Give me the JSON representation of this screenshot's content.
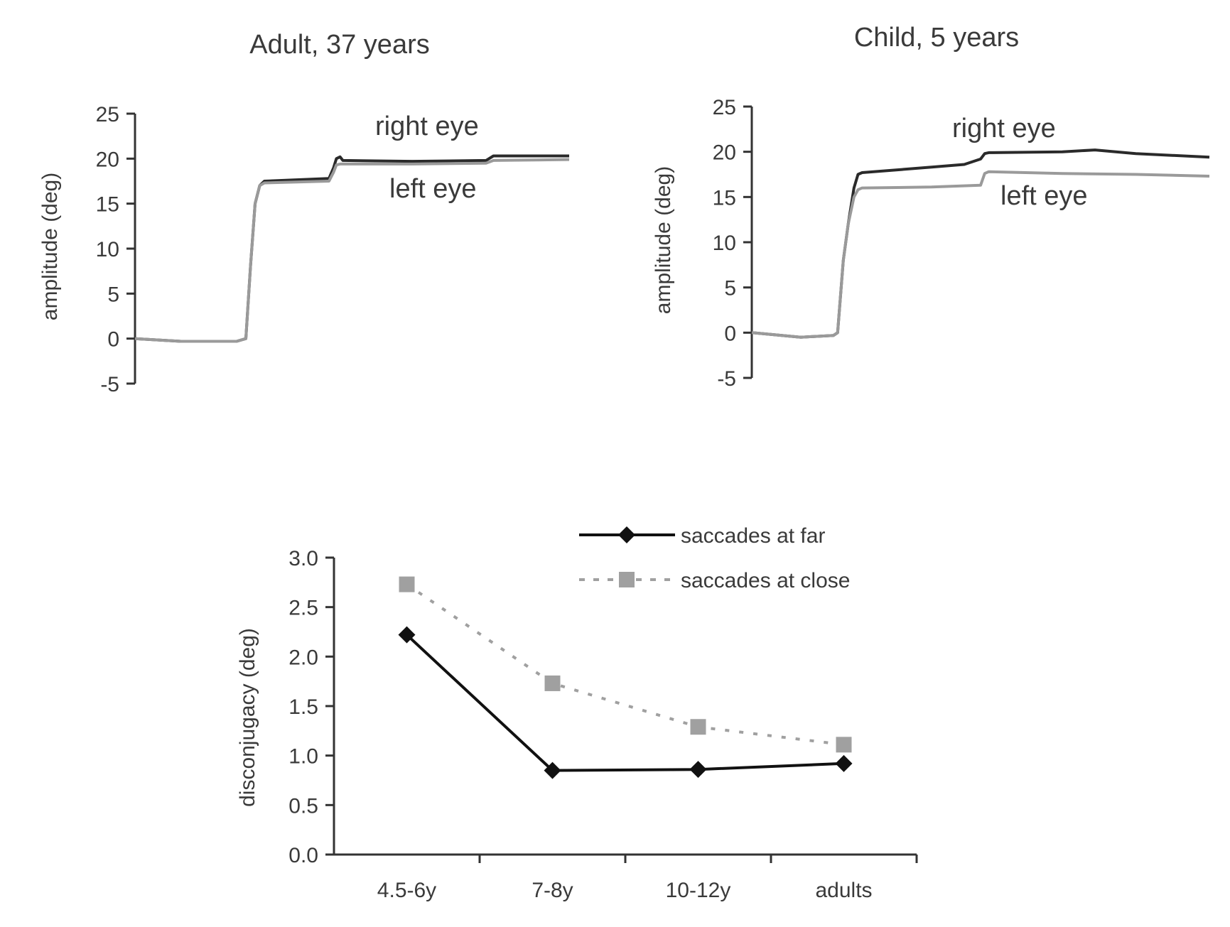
{
  "chart_data": [
    {
      "type": "line",
      "title": "Adult, 37 years",
      "ylabel": "amplitude (deg)",
      "xlabel": "",
      "ylim": [
        -5,
        25
      ],
      "yticks": [
        -5,
        0,
        5,
        10,
        15,
        20,
        25
      ],
      "annotations": [
        "right eye",
        "left eye"
      ],
      "series": [
        {
          "name": "right eye",
          "color": "#2a2a2a",
          "x": [
            0,
            50,
            110,
            120,
            125,
            130,
            135,
            140,
            210,
            215,
            218,
            222,
            225,
            300,
            380,
            388,
            392,
            470
          ],
          "y": [
            0,
            -0.3,
            -0.3,
            0,
            8,
            15,
            17,
            17.5,
            17.8,
            19,
            20,
            20.2,
            19.8,
            19.7,
            19.8,
            20.3,
            20.3,
            20.3
          ]
        },
        {
          "name": "left eye",
          "color": "#9a9a9a",
          "x": [
            0,
            50,
            110,
            120,
            125,
            130,
            135,
            140,
            210,
            215,
            218,
            222,
            225,
            300,
            380,
            388,
            470
          ],
          "y": [
            0,
            -0.3,
            -0.3,
            0,
            8,
            15,
            17,
            17.3,
            17.5,
            18.5,
            19.3,
            19.4,
            19.4,
            19.4,
            19.5,
            19.8,
            19.9
          ]
        }
      ]
    },
    {
      "type": "line",
      "title": "Child, 5 years",
      "ylabel": "amplitude (deg)",
      "xlabel": "",
      "ylim": [
        -5,
        25
      ],
      "yticks": [
        -5,
        0,
        5,
        10,
        15,
        20,
        25
      ],
      "annotations": [
        "right eye",
        "left eye"
      ],
      "series": [
        {
          "name": "right eye",
          "color": "#2a2a2a",
          "x": [
            0,
            60,
            100,
            105,
            112,
            118,
            125,
            130,
            135,
            220,
            260,
            280,
            285,
            290,
            380,
            420,
            470,
            560
          ],
          "y": [
            0,
            -0.5,
            -0.3,
            0,
            8,
            12,
            16,
            17.5,
            17.7,
            18.3,
            18.6,
            19.2,
            19.8,
            19.9,
            20,
            20.2,
            19.8,
            19.4
          ]
        },
        {
          "name": "left eye",
          "color": "#9a9a9a",
          "x": [
            0,
            60,
            100,
            105,
            112,
            118,
            125,
            130,
            135,
            220,
            280,
            285,
            290,
            380,
            470,
            560
          ],
          "y": [
            0,
            -0.5,
            -0.3,
            0,
            8,
            12,
            15,
            15.8,
            16,
            16.1,
            16.3,
            17.6,
            17.8,
            17.6,
            17.5,
            17.3
          ]
        }
      ]
    },
    {
      "type": "line",
      "title": "",
      "ylabel": "disconjugacy (deg)",
      "xlabel": "",
      "ylim": [
        0,
        3
      ],
      "yticks": [
        "0.0",
        "0.5",
        "1.0",
        "1.5",
        "2.0",
        "2.5",
        "3.0"
      ],
      "categories": [
        "4.5-6y",
        "7-8y",
        "10-12y",
        "adults"
      ],
      "legend_position": "top-right",
      "series": [
        {
          "name": "saccades at far",
          "marker": "diamond",
          "line": "solid",
          "color": "#111111",
          "values": [
            2.22,
            0.85,
            0.86,
            0.92
          ]
        },
        {
          "name": "saccades at close",
          "marker": "square",
          "line": "dotted",
          "color": "#a0a0a0",
          "values": [
            2.73,
            1.73,
            1.29,
            1.11
          ]
        }
      ]
    }
  ]
}
